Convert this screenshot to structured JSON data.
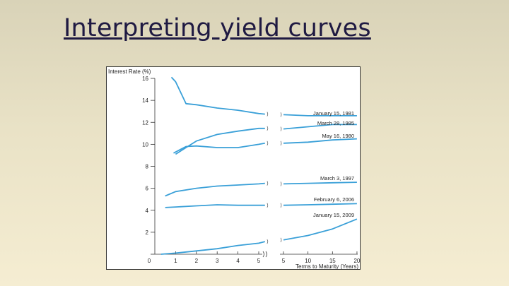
{
  "slide": {
    "title": "Interpreting yield curves"
  },
  "chart_data": {
    "type": "line",
    "title": "",
    "ylabel": "Interest Rate (%)",
    "xlabel": "Terms to Maturity (Years)",
    "ylim": [
      0,
      16
    ],
    "y_ticks": [
      "16",
      "14",
      "12",
      "10",
      "8",
      "6",
      "4",
      "2",
      "0"
    ],
    "x_ticks_left": [
      "1",
      "2",
      "3",
      "4",
      "5"
    ],
    "x_ticks_right": [
      "5",
      "10",
      "15",
      "20"
    ],
    "x_break_between_panels": true,
    "grid": false,
    "series_color": "#3aa0d8",
    "series": [
      {
        "name": "January 15, 1981",
        "left": [
          [
            0.8,
            16.1
          ],
          [
            1.0,
            15.7
          ],
          [
            1.5,
            13.7
          ],
          [
            2,
            13.6
          ],
          [
            3,
            13.3
          ],
          [
            4,
            13.1
          ],
          [
            5,
            12.8
          ],
          [
            5.3,
            12.75
          ]
        ],
        "right": [
          [
            5,
            12.7
          ],
          [
            10,
            12.6
          ],
          [
            15,
            12.6
          ],
          [
            20,
            12.6
          ]
        ]
      },
      {
        "name": "March 28, 1985",
        "left": [
          [
            1.0,
            9.1
          ],
          [
            1.5,
            9.7
          ],
          [
            2,
            10.3
          ],
          [
            3,
            10.9
          ],
          [
            4,
            11.2
          ],
          [
            5,
            11.45
          ],
          [
            5.3,
            11.45
          ]
        ],
        "right": [
          [
            5,
            11.4
          ],
          [
            10,
            11.6
          ],
          [
            15,
            11.8
          ],
          [
            20,
            11.8
          ]
        ]
      },
      {
        "name": "May 16, 1980",
        "left": [
          [
            0.9,
            9.2
          ],
          [
            1.5,
            9.8
          ],
          [
            2,
            9.85
          ],
          [
            3,
            9.7
          ],
          [
            4,
            9.7
          ],
          [
            5,
            10.0
          ],
          [
            5.3,
            10.1
          ]
        ],
        "right": [
          [
            5,
            10.1
          ],
          [
            10,
            10.2
          ],
          [
            15,
            10.4
          ],
          [
            20,
            10.5
          ]
        ]
      },
      {
        "name": "March 3, 1997",
        "left": [
          [
            0.5,
            5.3
          ],
          [
            1.0,
            5.7
          ],
          [
            2,
            6.0
          ],
          [
            3,
            6.2
          ],
          [
            4,
            6.3
          ],
          [
            5,
            6.4
          ],
          [
            5.3,
            6.45
          ]
        ],
        "right": [
          [
            5,
            6.4
          ],
          [
            10,
            6.45
          ],
          [
            15,
            6.5
          ],
          [
            20,
            6.55
          ]
        ]
      },
      {
        "name": "February 6, 2006",
        "left": [
          [
            0.5,
            4.25
          ],
          [
            1.0,
            4.3
          ],
          [
            2,
            4.4
          ],
          [
            3,
            4.5
          ],
          [
            4,
            4.45
          ],
          [
            5,
            4.45
          ],
          [
            5.3,
            4.45
          ]
        ],
        "right": [
          [
            5,
            4.45
          ],
          [
            10,
            4.5
          ],
          [
            15,
            4.55
          ],
          [
            20,
            4.6
          ]
        ]
      },
      {
        "name": "January 15, 2009",
        "left": [
          [
            0.3,
            0.0
          ],
          [
            1.0,
            0.1
          ],
          [
            2,
            0.3
          ],
          [
            3,
            0.5
          ],
          [
            4,
            0.8
          ],
          [
            5,
            1.0
          ],
          [
            5.3,
            1.15
          ]
        ],
        "right": [
          [
            5,
            1.3
          ],
          [
            10,
            1.7
          ],
          [
            15,
            2.3
          ],
          [
            20,
            3.2
          ]
        ]
      }
    ]
  }
}
